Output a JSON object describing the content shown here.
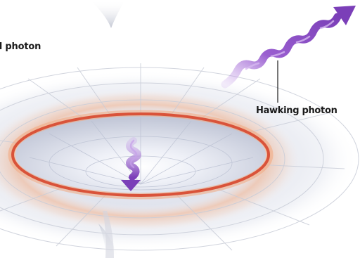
{
  "labels": {
    "partner_photon": "d photon",
    "hawking_photon": "Hawking photon"
  },
  "colors": {
    "background": "#ffffff",
    "funnel_shade": "#b7bccd",
    "grid_lines": "#c9cdd8",
    "event_horizon": "#d9533a",
    "horizon_glow": "#f3a77e",
    "photon": "#8a4cc2",
    "label_text": "#1a1a1a"
  }
}
